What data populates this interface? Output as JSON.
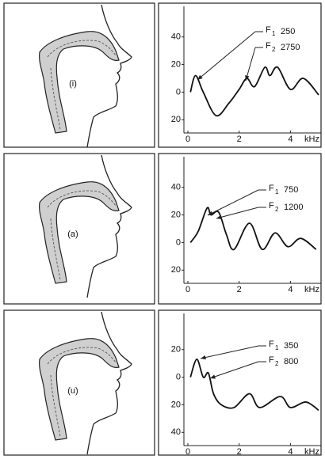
{
  "chart_data": [
    {
      "type": "line",
      "panel_label": "(i)",
      "x_label": "kHz",
      "x": [
        0.1,
        0.3,
        0.6,
        1.1,
        1.6,
        2.0,
        2.3,
        2.6,
        3.0,
        3.2,
        3.5,
        4.0,
        4.5,
        5.1
      ],
      "values": [
        0,
        12,
        0,
        -17,
        -8,
        2,
        10,
        4,
        18,
        12,
        18,
        2,
        10,
        -2
      ],
      "color": "#111",
      "xlim": [
        0,
        5.1
      ],
      "ylim": [
        -25,
        45
      ],
      "xticks": [
        0,
        2,
        4
      ],
      "yticks": [
        40,
        20,
        0,
        {
          "value": -20,
          "label": "20"
        }
      ],
      "annotations": [
        {
          "name": "F",
          "subscript": "1",
          "label": "250"
        },
        {
          "name": "F",
          "subscript": "2",
          "label": "2750"
        }
      ]
    },
    {
      "type": "line",
      "panel_label": "(a)",
      "x_label": "kHz",
      "x": [
        0.1,
        0.4,
        0.75,
        0.9,
        1.2,
        1.5,
        1.8,
        2.4,
        2.9,
        3.4,
        3.9,
        4.4,
        5.0
      ],
      "values": [
        0,
        8,
        25,
        20,
        22,
        6,
        -5,
        14,
        -5,
        7,
        -3,
        3,
        -5
      ],
      "color": "#111",
      "xlim": [
        0,
        5.1
      ],
      "ylim": [
        -25,
        45
      ],
      "xticks": [
        0,
        2,
        4
      ],
      "yticks": [
        40,
        20,
        0,
        {
          "value": -20,
          "label": "20"
        }
      ],
      "annotations": [
        {
          "name": "F",
          "subscript": "1",
          "label": "750"
        },
        {
          "name": "F",
          "subscript": "2",
          "label": "1200"
        }
      ]
    },
    {
      "type": "line",
      "panel_label": "(u)",
      "x_label": "kHz",
      "x": [
        0.1,
        0.35,
        0.6,
        0.8,
        1.0,
        1.3,
        1.8,
        2.4,
        2.8,
        3.6,
        4.0,
        4.6,
        5.1
      ],
      "values": [
        0,
        13,
        0,
        3,
        -12,
        -20,
        -22,
        -12,
        -22,
        -14,
        -22,
        -18,
        -24
      ],
      "color": "#111",
      "xlim": [
        0,
        5.1
      ],
      "ylim": [
        -45,
        25
      ],
      "xticks": [
        0,
        2,
        4
      ],
      "yticks": [
        20,
        0,
        {
          "value": -20,
          "label": "20"
        },
        {
          "value": -40,
          "label": "40"
        }
      ],
      "annotations": [
        {
          "name": "F",
          "subscript": "1",
          "label": "350"
        },
        {
          "name": "F",
          "subscript": "2",
          "label": "800"
        }
      ]
    }
  ]
}
